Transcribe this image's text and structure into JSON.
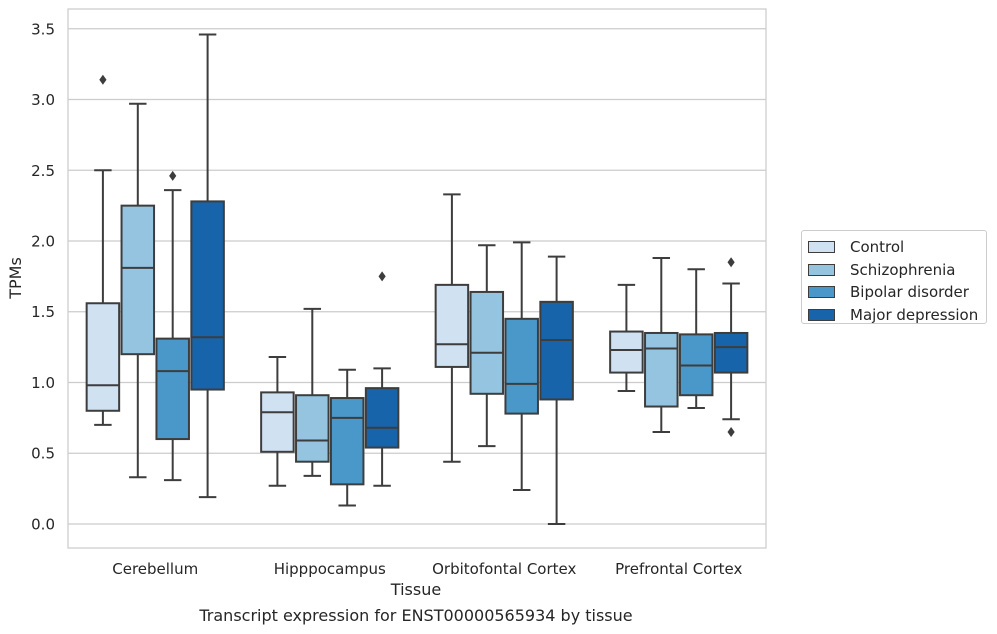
{
  "chart_data": {
    "type": "box",
    "xlabel": "Tissue",
    "ylabel": "TPMs",
    "ylim": [
      -0.17,
      3.64
    ],
    "yticks": [
      0.0,
      0.5,
      1.0,
      1.5,
      2.0,
      2.5,
      3.0,
      3.5
    ],
    "grid": true,
    "legend_position": "right",
    "categories": [
      "Cerebellum",
      "Hipppocampus",
      "Orbitofontal Cortex",
      "Prefrontal Cortex"
    ],
    "series": [
      {
        "name": "Control",
        "color": "#d0e1f2",
        "boxes": [
          {
            "whisker_low": 0.7,
            "q1": 0.8,
            "median": 0.98,
            "q3": 1.56,
            "whisker_high": 2.5,
            "outliers": [
              3.14
            ]
          },
          {
            "whisker_low": 0.27,
            "q1": 0.51,
            "median": 0.79,
            "q3": 0.93,
            "whisker_high": 1.18,
            "outliers": []
          },
          {
            "whisker_low": 0.44,
            "q1": 1.11,
            "median": 1.27,
            "q3": 1.69,
            "whisker_high": 2.33,
            "outliers": []
          },
          {
            "whisker_low": 0.94,
            "q1": 1.07,
            "median": 1.23,
            "q3": 1.36,
            "whisker_high": 1.69,
            "outliers": []
          }
        ]
      },
      {
        "name": "Schizophrenia",
        "color": "#94c4df",
        "boxes": [
          {
            "whisker_low": 0.33,
            "q1": 1.2,
            "median": 1.81,
            "q3": 2.25,
            "whisker_high": 2.97,
            "outliers": []
          },
          {
            "whisker_low": 0.34,
            "q1": 0.44,
            "median": 0.59,
            "q3": 0.91,
            "whisker_high": 1.52,
            "outliers": []
          },
          {
            "whisker_low": 0.55,
            "q1": 0.92,
            "median": 1.21,
            "q3": 1.64,
            "whisker_high": 1.97,
            "outliers": []
          },
          {
            "whisker_low": 0.65,
            "q1": 0.83,
            "median": 1.24,
            "q3": 1.35,
            "whisker_high": 1.88,
            "outliers": []
          }
        ]
      },
      {
        "name": "Bipolar disorder",
        "color": "#4a98c9",
        "boxes": [
          {
            "whisker_low": 0.31,
            "q1": 0.6,
            "median": 1.08,
            "q3": 1.31,
            "whisker_high": 2.36,
            "outliers": [
              2.46
            ]
          },
          {
            "whisker_low": 0.13,
            "q1": 0.28,
            "median": 0.75,
            "q3": 0.89,
            "whisker_high": 1.09,
            "outliers": []
          },
          {
            "whisker_low": 0.24,
            "q1": 0.78,
            "median": 0.99,
            "q3": 1.45,
            "whisker_high": 1.99,
            "outliers": []
          },
          {
            "whisker_low": 0.82,
            "q1": 0.91,
            "median": 1.12,
            "q3": 1.34,
            "whisker_high": 1.8,
            "outliers": []
          }
        ]
      },
      {
        "name": "Major depression",
        "color": "#1764ab",
        "boxes": [
          {
            "whisker_low": 0.19,
            "q1": 0.95,
            "median": 1.32,
            "q3": 2.28,
            "whisker_high": 3.46,
            "outliers": []
          },
          {
            "whisker_low": 0.27,
            "q1": 0.54,
            "median": 0.68,
            "q3": 0.96,
            "whisker_high": 1.1,
            "outliers": [
              1.75
            ]
          },
          {
            "whisker_low": 0.0,
            "q1": 0.88,
            "median": 1.3,
            "q3": 1.57,
            "whisker_high": 1.89,
            "outliers": []
          },
          {
            "whisker_low": 0.74,
            "q1": 1.07,
            "median": 1.25,
            "q3": 1.35,
            "whisker_high": 1.7,
            "outliers": [
              1.85,
              0.65
            ]
          }
        ]
      }
    ]
  },
  "caption": "Transcript expression for ENST00000565934 by tissue"
}
